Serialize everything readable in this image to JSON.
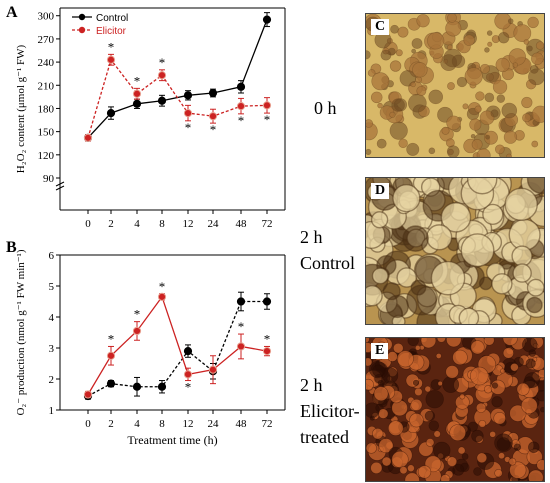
{
  "panel_letters": {
    "a": "A",
    "b": "B"
  },
  "chart_data": [
    {
      "id": "A",
      "type": "line",
      "x": [
        "0",
        "2",
        "4",
        "8",
        "12",
        "24",
        "48",
        "72"
      ],
      "ylabel": "H₂O₂ content (μmol g⁻¹ FW)",
      "xlabel": "",
      "yticks": [
        "90",
        "120",
        "150",
        "180",
        "210",
        "240",
        "270",
        "300"
      ],
      "ylim": [
        90,
        310
      ],
      "axis_break": true,
      "legend": "top-left",
      "series": [
        {
          "name": "Control",
          "color": "#000000",
          "dashed": false,
          "values": [
            142,
            174,
            186,
            190,
            197,
            200,
            208,
            295
          ],
          "errors": [
            4,
            8,
            6,
            7,
            6,
            5,
            8,
            9
          ],
          "stars": [
            false,
            false,
            false,
            false,
            false,
            false,
            false,
            false
          ]
        },
        {
          "name": "Elicitor",
          "color": "#cc2222",
          "dashed": true,
          "values": [
            142,
            243,
            199,
            223,
            174,
            170,
            183,
            184
          ],
          "errors": [
            4,
            7,
            7,
            7,
            10,
            9,
            10,
            10
          ],
          "stars": [
            false,
            true,
            true,
            true,
            true,
            true,
            true,
            true
          ]
        }
      ]
    },
    {
      "id": "B",
      "type": "line",
      "x": [
        "0",
        "2",
        "4",
        "8",
        "12",
        "24",
        "48",
        "72"
      ],
      "ylabel": "O₂⁻ production (nmol g⁻¹ FW min⁻¹)",
      "xlabel": "Treatment time (h)",
      "yticks": [
        "1",
        "2",
        "3",
        "4",
        "5",
        "6"
      ],
      "ylim": [
        1,
        6
      ],
      "series": [
        {
          "name": "Control",
          "color": "#000000",
          "dashed": true,
          "values": [
            1.45,
            1.85,
            1.75,
            1.75,
            2.9,
            2.25,
            4.5,
            4.5
          ],
          "errors": [
            0.1,
            0.1,
            0.3,
            0.2,
            0.2,
            0.25,
            0.3,
            0.25
          ],
          "stars": [
            false,
            false,
            false,
            false,
            false,
            false,
            false,
            false
          ]
        },
        {
          "name": "Elicitor",
          "color": "#cc2222",
          "dashed": false,
          "values": [
            1.5,
            2.75,
            3.55,
            4.65,
            2.15,
            2.3,
            3.05,
            2.9
          ],
          "errors": [
            0.1,
            0.3,
            0.3,
            0.1,
            0.2,
            0.45,
            0.4,
            0.15
          ],
          "stars": [
            false,
            true,
            true,
            true,
            true,
            false,
            true,
            true
          ]
        }
      ]
    }
  ],
  "photos": [
    {
      "letter": "C",
      "label": "0 h",
      "base": "#d8b868",
      "cell": "#a8743a",
      "dark": "#6e4a22"
    },
    {
      "letter": "D",
      "label": "2 h\nControl",
      "base": "#b99450",
      "cell": "#e6d3a2",
      "dark": "#4a3014"
    },
    {
      "letter": "E",
      "label": "2 h\nElicitor-\ntreated",
      "base": "#5a2410",
      "cell": "#c9652e",
      "dark": "#2a0c04"
    }
  ]
}
